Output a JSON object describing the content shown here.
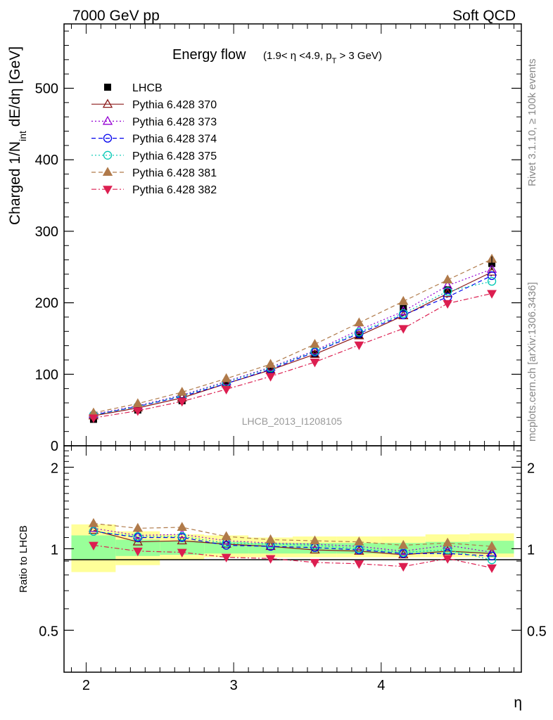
{
  "header": {
    "left": "7000 GeV pp",
    "right": "Soft QCD"
  },
  "side_text": {
    "rivet": "Rivet 3.1.10, ≥ 100k events",
    "mcplots": "mcplots.cern.ch [arXiv:1306.3436]"
  },
  "analysis_id": "LHCB_2013_I1208105",
  "chart_data": [
    {
      "type": "line",
      "panel": "main",
      "title": "Energy flow",
      "title_cut_parts": [
        "(1.9< η <4.9, p",
        "T",
        " > 3 GeV)"
      ],
      "ylabel_parts": [
        "Charged 1/N",
        "int",
        " dE/dη [GeV]"
      ],
      "xlabel": "η",
      "xlim": [
        1.85,
        4.95
      ],
      "ylim": [
        0,
        590
      ],
      "yticks": [
        0,
        100,
        200,
        300,
        400,
        500
      ],
      "ytick_labels": [
        "0",
        "100",
        "200",
        "300",
        "400",
        "500"
      ],
      "legend_position": "top-left",
      "x": [
        2.05,
        2.35,
        2.65,
        2.95,
        3.25,
        3.55,
        3.85,
        4.15,
        4.45,
        4.75
      ],
      "series": [
        {
          "name": "LHCB",
          "marker": "square",
          "style": "none",
          "color": "#000000",
          "values": [
            37,
            50,
            63,
            85,
            105,
            128,
            155,
            192,
            218,
            255
          ]
        },
        {
          "name": "Pythia 6.428 370",
          "marker": "triangle-up-open",
          "style": "solid",
          "color": "#8b1a1a",
          "values": [
            42,
            53,
            67,
            87,
            106,
            128,
            154,
            182,
            213,
            243
          ]
        },
        {
          "name": "Pythia 6.428 373",
          "marker": "triangle-up-open",
          "style": "dotted",
          "color": "#9400d3",
          "values": [
            44,
            56,
            71,
            90,
            110,
            133,
            162,
            188,
            224,
            247
          ]
        },
        {
          "name": "Pythia 6.428 374",
          "marker": "circle-open",
          "style": "dashed",
          "color": "#0000ee",
          "values": [
            43,
            55,
            69,
            87,
            107,
            131,
            157,
            183,
            208,
            238
          ]
        },
        {
          "name": "Pythia 6.428 375",
          "marker": "circle-open",
          "style": "dotted",
          "color": "#00c8b4",
          "values": [
            43,
            55,
            70,
            89,
            109,
            132,
            159,
            185,
            216,
            230
          ]
        },
        {
          "name": "Pythia 6.428 381",
          "marker": "triangle-up",
          "style": "dashed",
          "color": "#b07a4a",
          "values": [
            46,
            59,
            75,
            94,
            114,
            142,
            172,
            202,
            232,
            261
          ]
        },
        {
          "name": "Pythia 6.428 382",
          "marker": "triangle-down",
          "style": "dashdot",
          "color": "#dc1e50",
          "values": [
            39,
            49,
            62,
            79,
            97,
            117,
            141,
            164,
            199,
            213
          ]
        }
      ]
    },
    {
      "type": "line",
      "panel": "ratio",
      "ylabel": "Ratio to LHCB",
      "xlabel": "η",
      "xlim": [
        1.85,
        4.95
      ],
      "ylim": [
        0.35,
        2.4
      ],
      "yticks": [
        0.5,
        1,
        2
      ],
      "ytick_labels": [
        "0.5",
        "1",
        "2"
      ],
      "xticks": [
        2,
        3,
        4
      ],
      "xtick_labels": [
        "2",
        "3",
        "4"
      ],
      "bin_edges": [
        1.9,
        2.2,
        2.5,
        2.8,
        3.1,
        3.4,
        3.7,
        4.0,
        4.3,
        4.6,
        4.9
      ],
      "band_inner": [
        [
          0.91,
          1.12
        ],
        [
          0.94,
          1.08
        ],
        [
          0.95,
          1.07
        ],
        [
          0.96,
          1.06
        ],
        [
          0.96,
          1.05
        ],
        [
          0.96,
          1.05
        ],
        [
          0.96,
          1.05
        ],
        [
          0.96,
          1.05
        ],
        [
          0.96,
          1.06
        ],
        [
          0.96,
          1.07
        ]
      ],
      "band_outer": [
        [
          0.82,
          1.23
        ],
        [
          0.87,
          1.16
        ],
        [
          0.91,
          1.13
        ],
        [
          0.93,
          1.12
        ],
        [
          0.93,
          1.1
        ],
        [
          0.93,
          1.11
        ],
        [
          0.93,
          1.11
        ],
        [
          0.93,
          1.11
        ],
        [
          0.93,
          1.13
        ],
        [
          0.93,
          1.14
        ]
      ],
      "x": [
        2.05,
        2.35,
        2.65,
        2.95,
        3.25,
        3.55,
        3.85,
        4.15,
        4.45,
        4.75
      ],
      "series": [
        {
          "name": "Pythia 6.428 370",
          "values": [
            1.17,
            1.06,
            1.07,
            1.04,
            1.02,
            0.99,
            0.98,
            0.95,
            0.98,
            0.96
          ]
        },
        {
          "name": "Pythia 6.428 373",
          "values": [
            1.19,
            1.12,
            1.13,
            1.07,
            1.05,
            1.04,
            1.02,
            0.98,
            1.03,
            0.97
          ]
        },
        {
          "name": "Pythia 6.428 374",
          "values": [
            1.16,
            1.1,
            1.1,
            1.03,
            1.02,
            1.01,
            0.99,
            0.96,
            0.96,
            0.94
          ]
        },
        {
          "name": "Pythia 6.428 375",
          "values": [
            1.16,
            1.11,
            1.11,
            1.05,
            1.04,
            1.03,
            1.0,
            0.97,
            0.99,
            0.91
          ]
        },
        {
          "name": "Pythia 6.428 381",
          "values": [
            1.24,
            1.19,
            1.2,
            1.11,
            1.08,
            1.07,
            1.06,
            1.03,
            1.05,
            1.02
          ]
        },
        {
          "name": "Pythia 6.428 382",
          "values": [
            1.03,
            0.98,
            0.97,
            0.93,
            0.92,
            0.89,
            0.88,
            0.86,
            0.92,
            0.85
          ]
        }
      ]
    }
  ]
}
